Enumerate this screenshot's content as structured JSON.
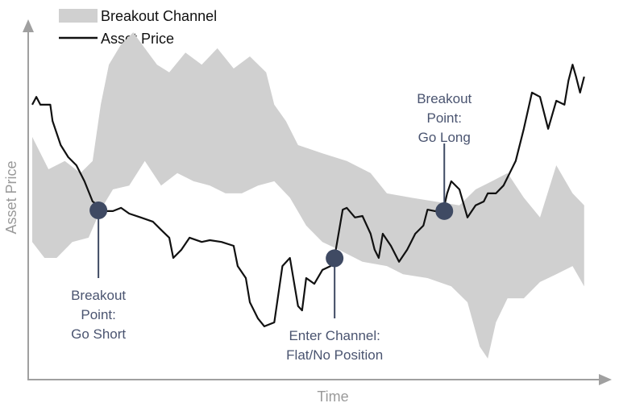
{
  "chart_data": {
    "type": "line",
    "xlabel": "Time",
    "ylabel": "Asset Price",
    "xlim": [
      0,
      100
    ],
    "ylim": [
      0,
      100
    ],
    "grid": false,
    "ticks": false,
    "legend": {
      "placement": "top-left",
      "entries": [
        {
          "label": "Breakout Channel",
          "kind": "band",
          "color": "#d0d0d0"
        },
        {
          "label": "Asset Price",
          "kind": "line",
          "color": "#111111"
        }
      ]
    },
    "colors": {
      "channel": "#d0d0d0",
      "price": "#111111",
      "marker": "#3f4a63",
      "annotation": "#4a5470",
      "axis": "#9a9a9a"
    },
    "price": {
      "x": [
        0.7,
        1.4,
        2.1,
        3.8,
        4.2,
        5.6,
        6.9,
        8.3,
        9.7,
        11.1,
        12.1,
        13.2,
        14.6,
        16,
        17.4,
        19.4,
        21.5,
        22.9,
        24.3,
        25,
        26.4,
        27.8,
        29.9,
        31.3,
        33.3,
        35.4,
        36.1,
        37.5,
        38.2,
        39.6,
        40.7,
        42.4,
        43.8,
        45.1,
        46.5,
        47.2,
        47.9,
        49.3,
        50.7,
        52.1,
        52.8,
        54.2,
        54.9,
        56.3,
        57.6,
        59,
        59.7,
        60.4,
        61.1,
        62.5,
        63.9,
        65.3,
        66.7,
        68.1,
        68.8,
        70.1,
        71.5,
        72.2,
        72.9,
        74.3,
        75.7,
        77.1,
        78.5,
        79.2,
        80.6,
        81.9,
        82.6,
        84,
        85.4,
        86.8,
        88.2,
        89.6,
        91,
        92.4,
        93.1,
        93.8,
        94.4,
        95.1,
        95.8
      ],
      "y": [
        77.3,
        79.5,
        77.3,
        77.3,
        72.7,
        65.9,
        62.5,
        60.2,
        55.7,
        50,
        48.9,
        47.3,
        47.3,
        48.2,
        46.6,
        45.5,
        44.3,
        42,
        39.8,
        34.1,
        36.4,
        39.8,
        38.6,
        39.1,
        38.6,
        37.5,
        31.8,
        28.4,
        21.6,
        17,
        14.8,
        15.9,
        31.8,
        34.1,
        20.5,
        19.3,
        28.4,
        26.8,
        30.7,
        31.8,
        34.5,
        47.7,
        48.2,
        45.5,
        45.9,
        40.9,
        36.4,
        34.1,
        40.9,
        37.5,
        33,
        36.4,
        40.9,
        43.2,
        47.7,
        47.3,
        47.3,
        52.3,
        55.7,
        53.4,
        45.5,
        48.9,
        50,
        52.3,
        52.3,
        54.5,
        56.8,
        61.4,
        70.5,
        80.7,
        79.5,
        70.5,
        78.4,
        77.3,
        84.1,
        88.6,
        85.2,
        80.7,
        85.2
      ]
    },
    "channel_upper": {
      "x": [
        0.7,
        3.5,
        6.3,
        9,
        11.1,
        12.5,
        13.9,
        16,
        18.1,
        20.1,
        22.2,
        24.3,
        27.1,
        29.9,
        32.6,
        35.4,
        38.2,
        41,
        42.4,
        44.4,
        46.5,
        50.7,
        54.9,
        59,
        61.8,
        66,
        70.1,
        74.3,
        77.1,
        79.9,
        82.6,
        85.4,
        88.2,
        91,
        93.8,
        95.8
      ],
      "y": [
        68.2,
        59.1,
        61.4,
        58,
        61.4,
        77.3,
        88.6,
        94.3,
        97.7,
        93.2,
        88.6,
        86.4,
        92,
        88.6,
        93.2,
        87.5,
        90.9,
        86.4,
        77.3,
        72.7,
        65.9,
        63.6,
        61.4,
        58,
        52.3,
        51.1,
        50,
        48.9,
        53.4,
        55.7,
        58,
        51.1,
        45.5,
        60.2,
        52.3,
        48.9
      ]
    },
    "channel_lower": {
      "x": [
        0.7,
        2.8,
        4.9,
        7.6,
        10.4,
        12.5,
        14.6,
        17.4,
        20.1,
        22.9,
        25.7,
        28.5,
        31.3,
        34,
        36.8,
        39.6,
        42.4,
        45.1,
        47.9,
        50.7,
        53.5,
        57.6,
        61.8,
        64.6,
        68.8,
        72.9,
        75.7,
        77.8,
        79.2,
        80.6,
        82.6,
        85.4,
        88.2,
        91,
        93.8,
        95.8
      ],
      "y": [
        38.6,
        34.1,
        34.1,
        38.6,
        39.8,
        47.7,
        53.4,
        54.5,
        61.4,
        54.5,
        58,
        55.7,
        54.5,
        52.3,
        52.3,
        54.5,
        55.7,
        51.1,
        43.2,
        38.6,
        36.4,
        33,
        31.8,
        29.5,
        28.4,
        26.1,
        21.6,
        9.1,
        5.7,
        15.9,
        22.7,
        22.7,
        27.3,
        29.5,
        31.8,
        26.1
      ]
    },
    "annotations": [
      {
        "x": 12.1,
        "y": 47.5,
        "lines": [
          "Breakout",
          "Point:",
          "Go Short"
        ],
        "direction": "below"
      },
      {
        "x": 52.8,
        "y": 34,
        "lines": [
          "Enter Channel:",
          "Flat/No Position"
        ],
        "direction": "below"
      },
      {
        "x": 71.7,
        "y": 47.3,
        "lines": [
          "Breakout",
          "Point:",
          "Go Long"
        ],
        "direction": "above"
      }
    ]
  }
}
